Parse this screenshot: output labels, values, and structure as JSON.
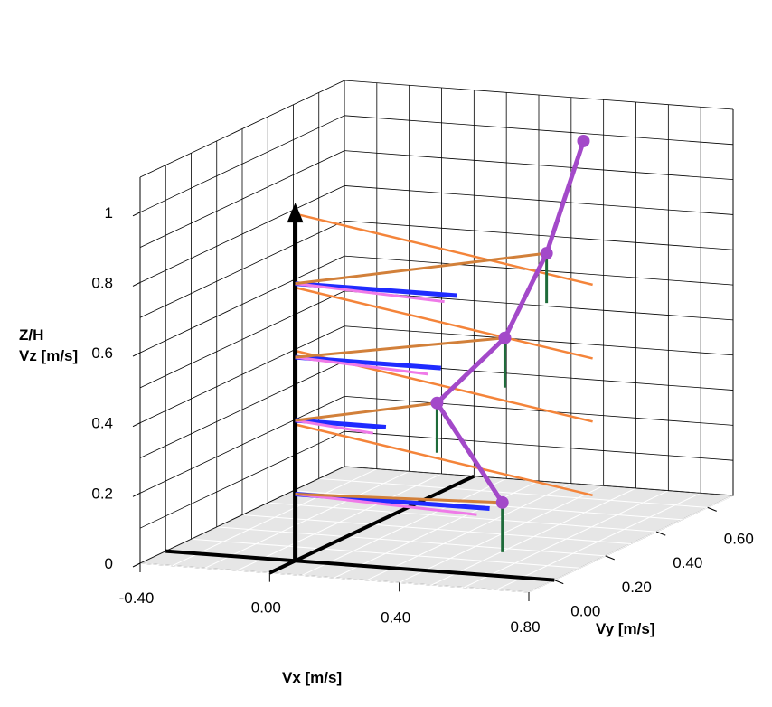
{
  "chart_data": {
    "type": "line",
    "projection": "3d",
    "axes": {
      "x": {
        "label": "Vx [m/s]",
        "range": [
          -0.4,
          0.8
        ],
        "ticks": [
          "-0.40",
          "0.00",
          "0.40",
          "0.80"
        ],
        "tick_values": [
          -0.4,
          0.0,
          0.4,
          0.8
        ]
      },
      "y": {
        "label": "Vy [m/s]",
        "range": [
          -0.1,
          0.7
        ],
        "ticks": [
          "0.00",
          "0.20",
          "0.40",
          "0.60"
        ],
        "tick_values": [
          0.0,
          0.2,
          0.4,
          0.6
        ]
      },
      "z": {
        "label_line1": "Z/H",
        "label_line2": "Vz [m/s]",
        "range": [
          0,
          1.1
        ],
        "ticks": [
          "0",
          "0.2",
          "0.4",
          "0.6",
          "0.8",
          "1"
        ],
        "tick_values": [
          0,
          0.2,
          0.4,
          0.6,
          0.8,
          1.0
        ]
      }
    },
    "grid": true,
    "floor_color": "#e6e6e6",
    "colors": {
      "axis_black": "#000000",
      "vx_component": "#1f2bff",
      "vy_component": "#ef7ae8",
      "resultant": "#d2803a",
      "vertical_drop": "#1e6b3a",
      "profile": "#a349c9",
      "level_line": "#f4843a"
    },
    "levels": [
      {
        "z": 0.19,
        "vx": 0.6,
        "vy": 0.05
      },
      {
        "z": 0.4,
        "vx": 0.28,
        "vy": 0.2
      },
      {
        "z": 0.58,
        "vx": 0.45,
        "vy": 0.25
      },
      {
        "z": 0.79,
        "vx": 0.5,
        "vy": 0.35
      }
    ],
    "series": [
      {
        "name": "",
        "x": [
          0.6,
          0.28,
          0.45,
          0.5
        ],
        "y": [
          0.05,
          0.2,
          0.25,
          0.35
        ],
        "z": [
          0.19,
          0.4,
          0.58,
          0.79
        ]
      }
    ]
  }
}
